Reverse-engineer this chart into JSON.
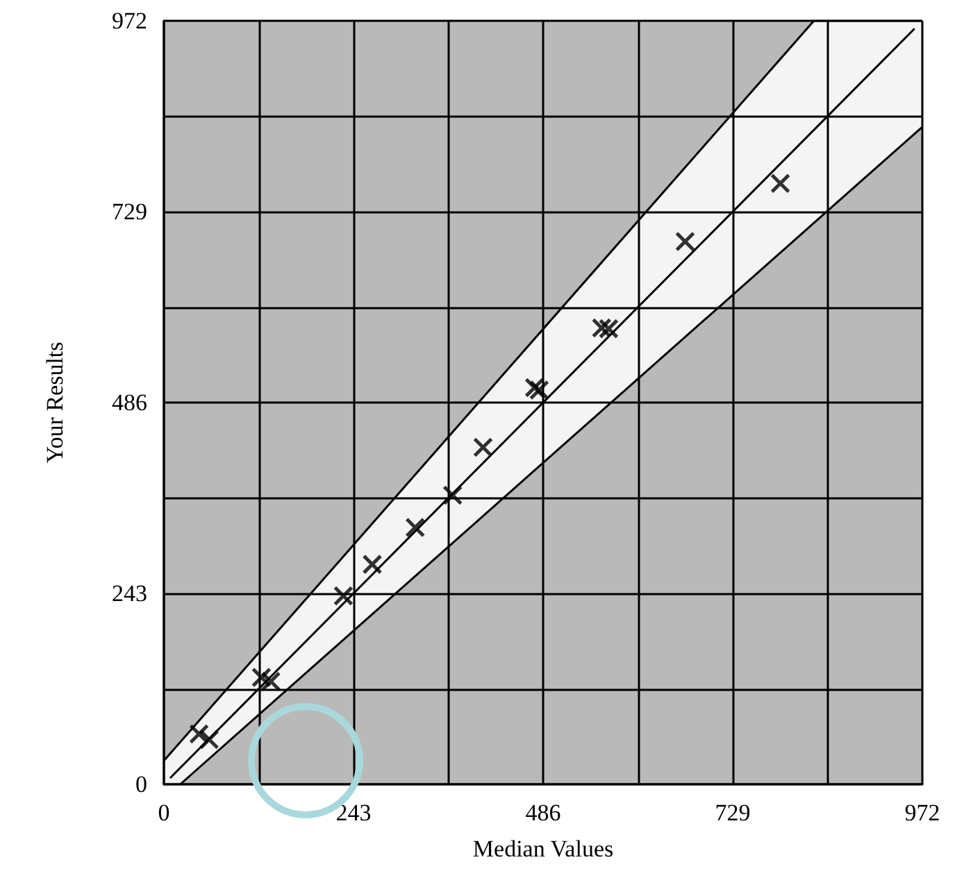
{
  "chart_data": {
    "type": "scatter",
    "xlabel": "Median Values",
    "ylabel": "Your Results",
    "xlim": [
      0,
      972
    ],
    "ylim": [
      0,
      972
    ],
    "xticks": [
      0,
      243,
      486,
      729,
      972
    ],
    "yticks": [
      0,
      243,
      486,
      729,
      972
    ],
    "grid": true,
    "marker": "cross",
    "series": [
      {
        "type": "area",
        "marker": "none",
        "color": "#000000",
        "x": [
          0,
          833,
          972
        ],
        "values": [
          30,
          972,
          972
        ]
      },
      {
        "type": "area",
        "marker": "none",
        "color": "#000000",
        "x": [
          21,
          972
        ],
        "values": [
          0,
          837
        ]
      },
      {
        "type": "line",
        "marker": "none",
        "color": "#000000",
        "x": [
          8,
          962
        ],
        "values": [
          8,
          962
        ]
      },
      {
        "color": "#000000",
        "x": [
          45,
          58,
          125,
          137,
          230,
          267,
          322,
          370,
          409,
          475,
          481,
          561,
          570,
          668,
          790
        ],
        "values": [
          64,
          57,
          136,
          131,
          240,
          280,
          327,
          368,
          429,
          505,
          502,
          581,
          580,
          691,
          765
        ]
      }
    ]
  }
}
